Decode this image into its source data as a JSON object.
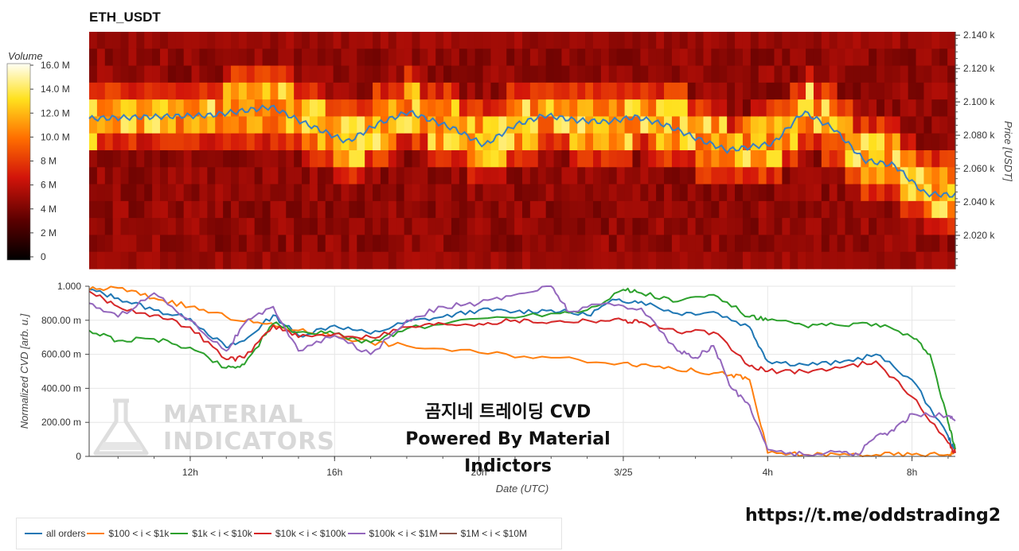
{
  "chart_data": [
    {
      "type": "heatmap",
      "title": "ETH_USDT",
      "colorbar_label": "Volume",
      "colorbar_ticks": [
        "16.0 M",
        "14.0 M",
        "12.0 M",
        "10.0 M",
        "8 M",
        "6 M",
        "4 M",
        "2 M",
        "0"
      ],
      "colorbar_range": [
        0,
        16000000
      ],
      "ylabel": "Price [USDT]",
      "y_ticks": [
        "2.140 k",
        "2.120 k",
        "2.100 k",
        "2.080 k",
        "2.060 k",
        "2.040 k",
        "2.020 k"
      ],
      "y_tick_values": [
        2140,
        2120,
        2100,
        2080,
        2060,
        2040,
        2020
      ],
      "ylim": [
        2000,
        2142
      ],
      "price_line_color": "#3a7fc2",
      "price_line": {
        "x": [
          0,
          4,
          6,
          7,
          8.5,
          9.5,
          10.5,
          12,
          13,
          14,
          15,
          16,
          17,
          18,
          19,
          20,
          21,
          22.5,
          23.5,
          24.5,
          25.5,
          26.5,
          27.5,
          28.5
        ],
        "y": [
          2090,
          2092,
          2097,
          2088,
          2076,
          2087,
          2094,
          2084,
          2074,
          2086,
          2092,
          2089,
          2088,
          2091,
          2086,
          2078,
          2071,
          2075,
          2094,
          2084,
          2065,
          2062,
          2045,
          2044
        ]
      }
    },
    {
      "type": "line",
      "ylabel": "Normalized CVD [arb. u.]",
      "xlabel": "Date (UTC)",
      "x_ticks": [
        "12h",
        "16h",
        "20h",
        "3/25",
        "4h",
        "8h"
      ],
      "x_tick_hours": [
        12,
        16,
        20,
        24,
        28,
        32
      ],
      "xlim": [
        9.2,
        33.2
      ],
      "y_ticks": [
        "1.000",
        "800.00 m",
        "600.00 m",
        "400.00 m",
        "200.00 m",
        "0"
      ],
      "y_tick_values": [
        1.0,
        0.8,
        0.6,
        0.4,
        0.2,
        0
      ],
      "ylim": [
        0,
        1.0
      ],
      "series": [
        {
          "name": "all orders",
          "color": "#1f77b4",
          "x": [
            9.2,
            10,
            11,
            12,
            13,
            13.5,
            14.3,
            15,
            16,
            17,
            18,
            19,
            20,
            21,
            22,
            23,
            23.8,
            24.5,
            25.5,
            26.5,
            27.5,
            28,
            29,
            30,
            31,
            32,
            33,
            33.2
          ],
          "y": [
            0.98,
            0.93,
            0.86,
            0.81,
            0.64,
            0.68,
            0.83,
            0.71,
            0.77,
            0.72,
            0.79,
            0.82,
            0.86,
            0.85,
            0.86,
            0.83,
            0.92,
            0.91,
            0.84,
            0.85,
            0.76,
            0.56,
            0.54,
            0.55,
            0.6,
            0.45,
            0.12,
            0.02
          ]
        },
        {
          "name": "$100 < i < $1k",
          "color": "#ff7f0e",
          "x": [
            9.2,
            10,
            11,
            12,
            13,
            14,
            15,
            16,
            17,
            18,
            20,
            22,
            24,
            25,
            26,
            27,
            27.5,
            28,
            29,
            30,
            31,
            32,
            33,
            33.2
          ],
          "y": [
            0.98,
            0.99,
            0.93,
            0.88,
            0.82,
            0.78,
            0.74,
            0.71,
            0.67,
            0.65,
            0.61,
            0.58,
            0.55,
            0.53,
            0.5,
            0.48,
            0.45,
            0.02,
            0.01,
            0.01,
            0.01,
            0.01,
            0.01,
            0.03
          ]
        },
        {
          "name": "$1k < i < $10k",
          "color": "#2ca02c",
          "x": [
            9.2,
            10,
            11,
            12,
            13,
            13.5,
            14.3,
            15,
            16,
            17,
            18,
            20,
            22,
            23,
            24,
            24.5,
            25.5,
            26.5,
            27.5,
            28,
            29,
            30,
            31,
            32,
            32.5,
            33,
            33.2
          ],
          "y": [
            0.74,
            0.68,
            0.69,
            0.64,
            0.52,
            0.54,
            0.78,
            0.73,
            0.72,
            0.67,
            0.75,
            0.81,
            0.84,
            0.86,
            0.98,
            0.96,
            0.91,
            0.95,
            0.82,
            0.8,
            0.77,
            0.77,
            0.78,
            0.7,
            0.6,
            0.2,
            0.04
          ]
        },
        {
          "name": "$10k < i < $100k",
          "color": "#d62728",
          "x": [
            9.2,
            10,
            11,
            12,
            13,
            13.5,
            14.3,
            15,
            16,
            17,
            18,
            19,
            20,
            21,
            22,
            23,
            24,
            24.5,
            25.5,
            26.5,
            27.5,
            28,
            29,
            30,
            31,
            32,
            33,
            33.2
          ],
          "y": [
            0.97,
            0.88,
            0.83,
            0.76,
            0.57,
            0.58,
            0.77,
            0.7,
            0.72,
            0.7,
            0.76,
            0.78,
            0.78,
            0.8,
            0.79,
            0.8,
            0.8,
            0.79,
            0.73,
            0.73,
            0.53,
            0.5,
            0.5,
            0.52,
            0.56,
            0.35,
            0.08,
            0.02
          ]
        },
        {
          "name": "$100k < i < $1M",
          "color": "#9467bd",
          "x": [
            9.2,
            10,
            11,
            12,
            13,
            13.5,
            14.3,
            15,
            16,
            17,
            18,
            19,
            20,
            21,
            22,
            22.5,
            23.5,
            24.5,
            25.5,
            26,
            26.5,
            27,
            27.5,
            28,
            29,
            30,
            30.5,
            31,
            31.5,
            32,
            33,
            33.2
          ],
          "y": [
            0.9,
            0.82,
            0.96,
            0.8,
            0.62,
            0.78,
            0.88,
            0.62,
            0.71,
            0.6,
            0.8,
            0.88,
            0.9,
            0.95,
            1.0,
            0.85,
            0.9,
            0.87,
            0.62,
            0.58,
            0.65,
            0.4,
            0.3,
            0.04,
            0.01,
            0.03,
            0.01,
            0.12,
            0.15,
            0.25,
            0.24,
            0.21
          ]
        },
        {
          "name": "$1M < i < $10M",
          "color": "#8c564b",
          "x": [],
          "y": []
        }
      ]
    }
  ],
  "watermark": {
    "line1": "곰지네 트레이딩 CVD",
    "line2": "Powered By Material Indictors",
    "brand1": "MATERIAL",
    "brand2": "INDICATORS",
    "logo_icon": "flask-icon"
  },
  "telegram_url": "https://t.me/oddstrading2"
}
